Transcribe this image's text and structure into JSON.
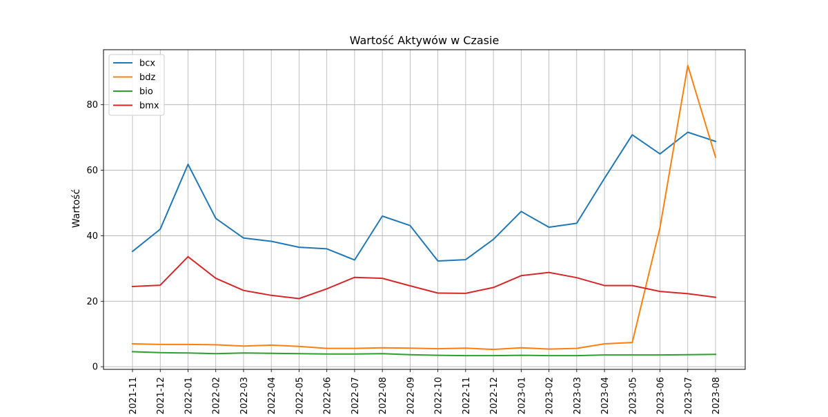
{
  "chart_data": {
    "type": "line",
    "title": "Wartość Aktywów w Czasie",
    "xlabel": "",
    "ylabel": "Wartość",
    "x": [
      "2021-11",
      "2021-12",
      "2022-01",
      "2022-02",
      "2022-03",
      "2022-04",
      "2022-05",
      "2022-06",
      "2022-07",
      "2022-08",
      "2022-09",
      "2022-10",
      "2022-11",
      "2022-12",
      "2023-01",
      "2023-02",
      "2023-03",
      "2023-04",
      "2023-05",
      "2023-06",
      "2023-07",
      "2023-08"
    ],
    "ylim": [
      -0.8,
      96.8
    ],
    "yticks": [
      0,
      20,
      40,
      60,
      80
    ],
    "grid": true,
    "legend_position": "top-left",
    "series": [
      {
        "name": "bcx",
        "color": "#1f77b4",
        "values": [
          35.2,
          42.0,
          61.8,
          45.3,
          39.3,
          38.3,
          36.5,
          36.0,
          32.6,
          46.0,
          43.1,
          32.3,
          32.7,
          38.9,
          47.4,
          42.6,
          43.8,
          57.5,
          70.8,
          65.0,
          71.6,
          68.8
        ]
      },
      {
        "name": "bdz",
        "color": "#ff7f0e",
        "values": [
          7.0,
          6.8,
          6.8,
          6.7,
          6.3,
          6.6,
          6.2,
          5.6,
          5.6,
          5.8,
          5.7,
          5.5,
          5.7,
          5.3,
          5.8,
          5.4,
          5.6,
          7.0,
          7.4,
          42.5,
          92.0,
          64.0
        ]
      },
      {
        "name": "bio",
        "color": "#2ca02c",
        "values": [
          4.6,
          4.3,
          4.2,
          4.0,
          4.2,
          4.1,
          4.0,
          3.9,
          3.9,
          4.0,
          3.7,
          3.5,
          3.4,
          3.4,
          3.5,
          3.4,
          3.4,
          3.6,
          3.6,
          3.6,
          3.7,
          3.8
        ]
      },
      {
        "name": "bmx",
        "color": "#d62728",
        "values": [
          24.5,
          24.9,
          33.6,
          27.0,
          23.3,
          21.8,
          20.8,
          23.8,
          27.3,
          27.0,
          24.7,
          22.5,
          22.4,
          24.2,
          27.8,
          28.8,
          27.2,
          24.8,
          24.8,
          23.0,
          22.3,
          21.2
        ]
      }
    ]
  }
}
